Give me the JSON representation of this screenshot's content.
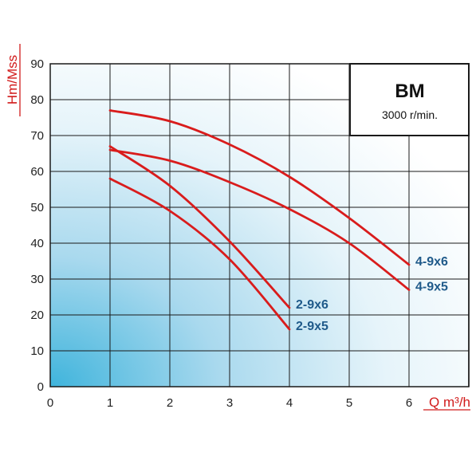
{
  "chart_data": {
    "type": "line",
    "title": "BM",
    "subtitle": "3000 r/min.",
    "xlabel": "Q m³/h",
    "ylabel": "Hm/Mss",
    "xlim": [
      0,
      7
    ],
    "ylim": [
      0,
      90
    ],
    "x_ticks": [
      0,
      1,
      2,
      3,
      4,
      5,
      6
    ],
    "y_ticks": [
      0,
      10,
      20,
      30,
      40,
      50,
      60,
      70,
      80,
      90
    ],
    "grid": true,
    "curve_color": "#d91c1c",
    "label_color": "#1f5a8a",
    "series": [
      {
        "name": "4-9x6",
        "x": [
          1,
          2,
          3,
          4,
          5,
          6
        ],
        "y": [
          77,
          74,
          67.5,
          58.5,
          47,
          34
        ]
      },
      {
        "name": "4-9x5",
        "x": [
          1,
          2,
          3,
          4,
          5,
          6
        ],
        "y": [
          66,
          63,
          57,
          49.5,
          40,
          27
        ]
      },
      {
        "name": "2-9x6",
        "x": [
          1,
          2,
          3,
          4
        ],
        "y": [
          67,
          56,
          40.5,
          22
        ]
      },
      {
        "name": "2-9x5",
        "x": [
          1,
          2,
          3,
          4
        ],
        "y": [
          58,
          49,
          35.5,
          16
        ]
      }
    ]
  }
}
